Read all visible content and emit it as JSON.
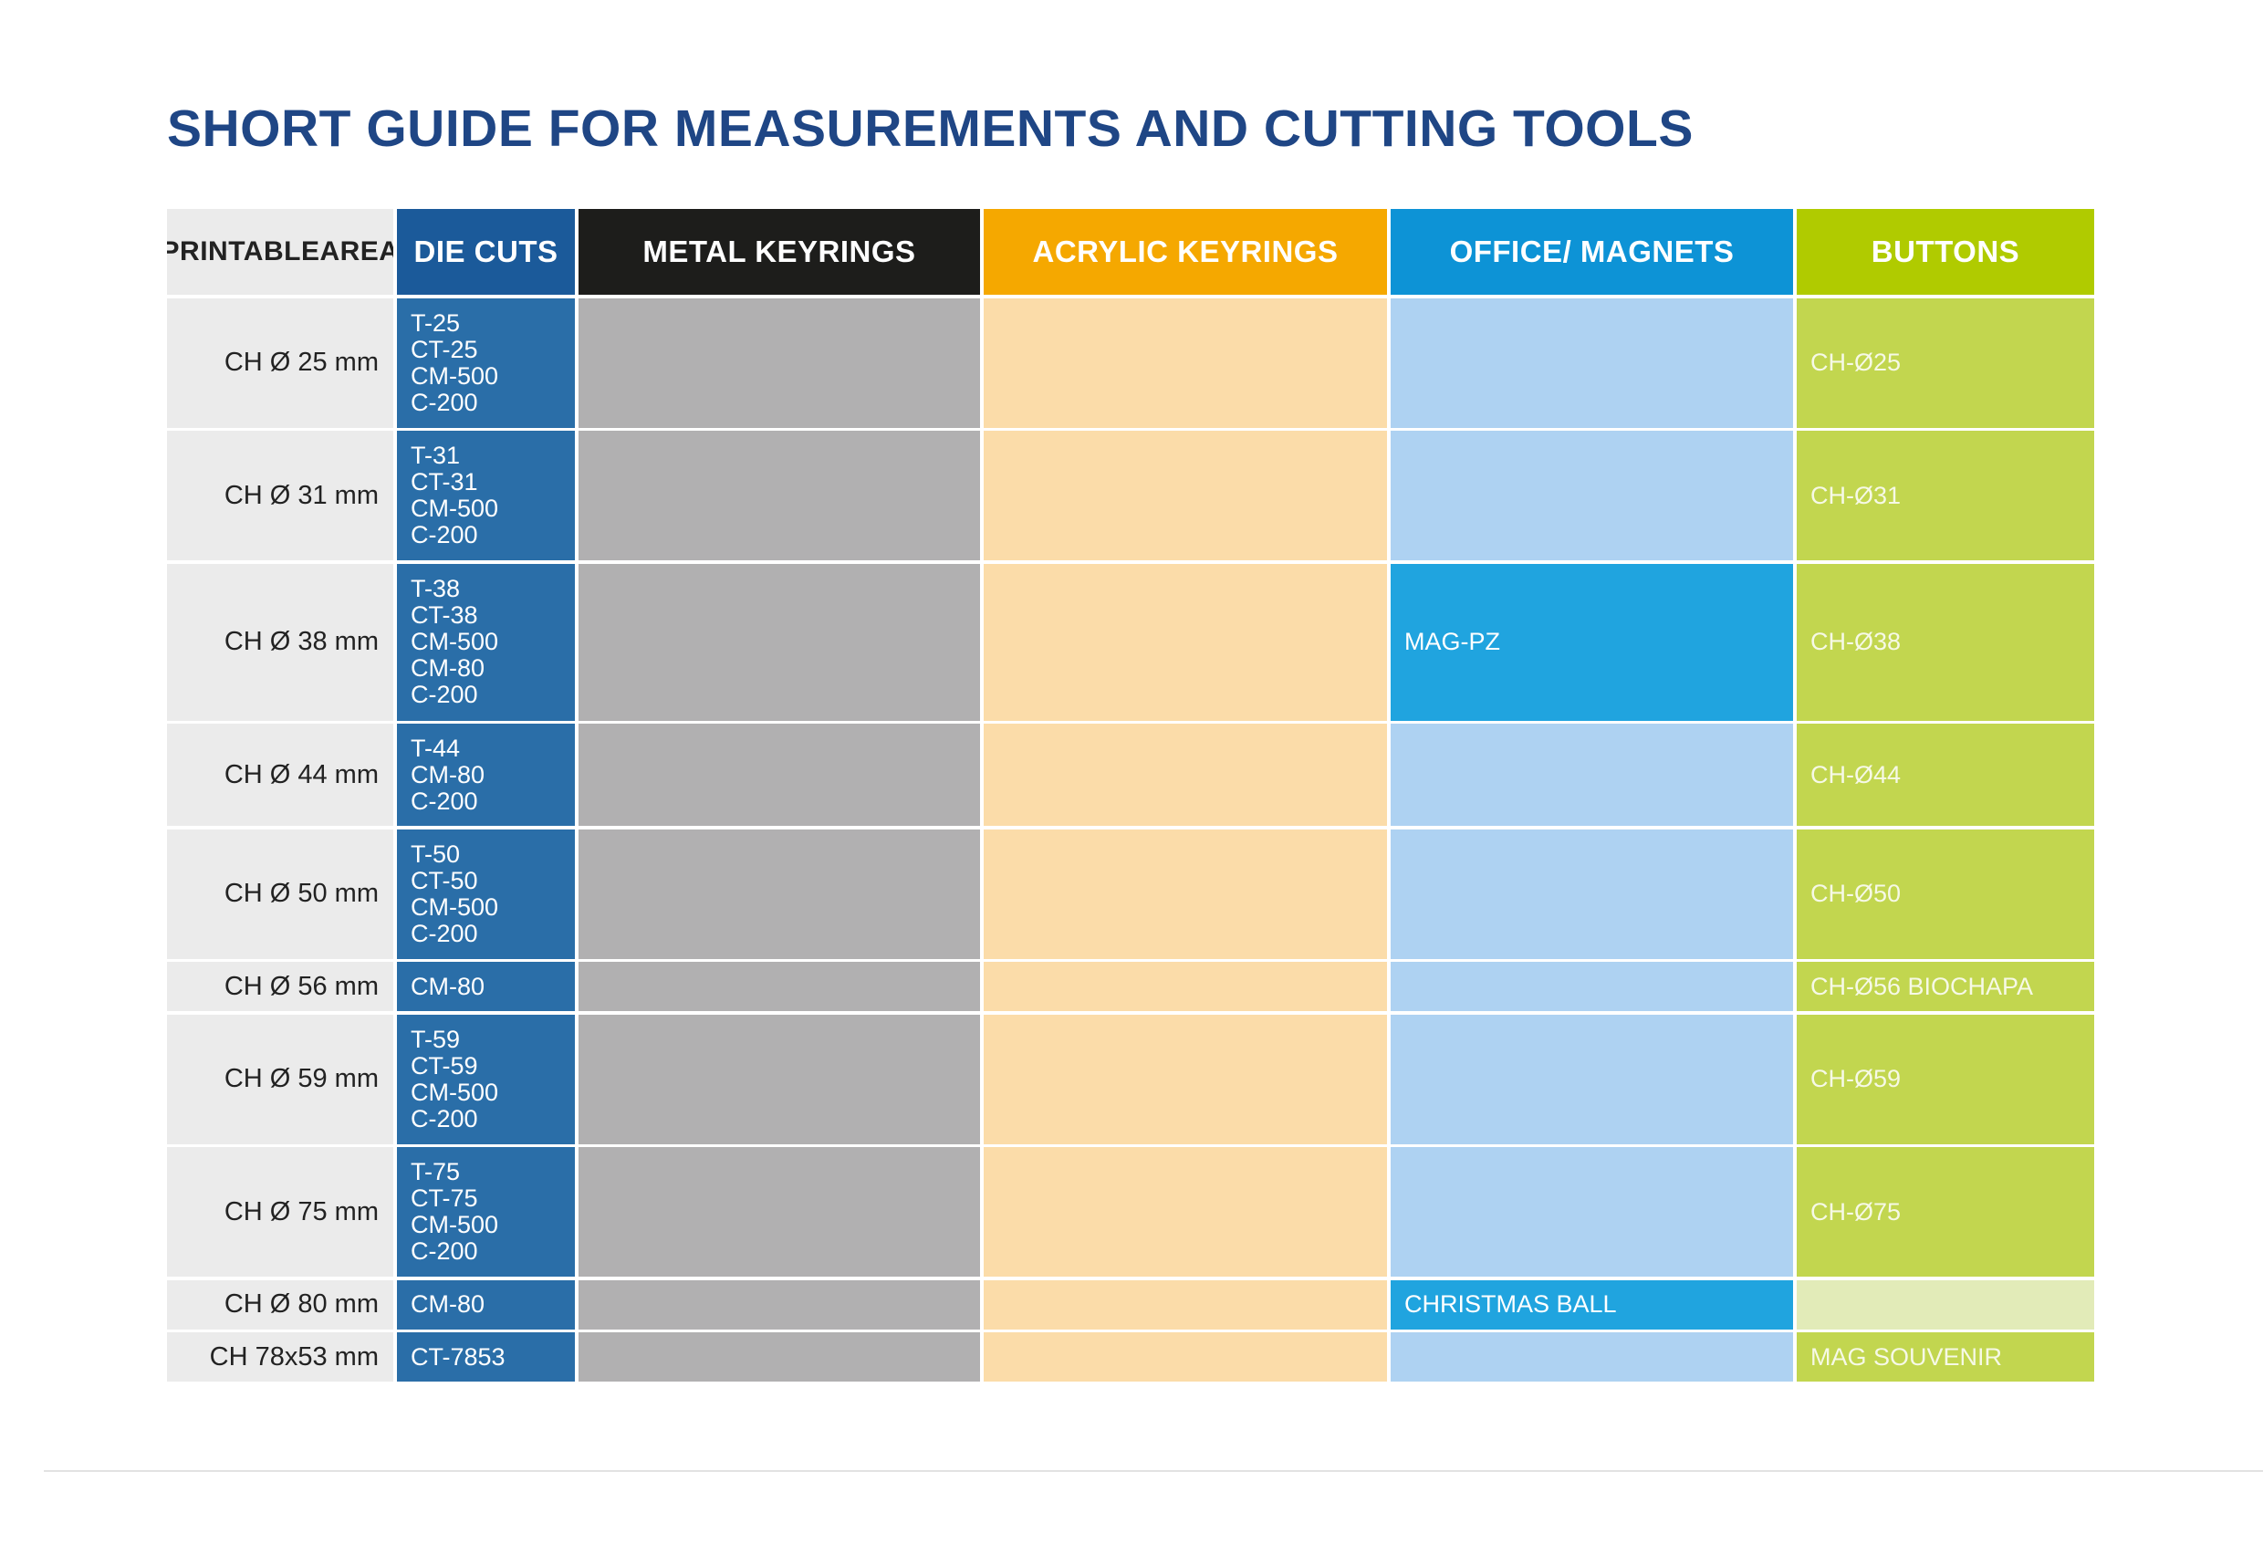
{
  "title": "SHORT GUIDE FOR MEASUREMENTS AND CUTTING TOOLS",
  "headers": {
    "printable_area": [
      "PRINTABLE",
      "AREA"
    ],
    "die_cuts": "DIE CUTS",
    "metal_keyrings": "METAL KEYRINGS",
    "acrylic_keyrings": "ACRYLIC KEYRINGS",
    "office_magnets": "OFFICE/ MAGNETS",
    "buttons": "BUTTONS"
  },
  "colors": {
    "title": "#1f4685",
    "die_cuts": "#1b5a9a",
    "metal_keyrings": "#1d1d1b",
    "acrylic_keyrings": "#f5a800",
    "office_magnets": "#0d93d6",
    "buttons": "#b0cb00"
  },
  "rows": [
    {
      "printable_area": "CH Ø 25 mm",
      "die_cuts": [
        "T-25",
        "CT-25",
        "CM-500",
        "C-200"
      ],
      "metal_keyrings": "",
      "acrylic_keyrings": "",
      "office_magnets": "",
      "buttons": "CH-Ø25"
    },
    {
      "printable_area": "CH Ø 31 mm",
      "die_cuts": [
        "T-31",
        "CT-31",
        "CM-500",
        "C-200"
      ],
      "metal_keyrings": "",
      "acrylic_keyrings": "",
      "office_magnets": "",
      "buttons": "CH-Ø31"
    },
    {
      "printable_area": "CH Ø 38 mm",
      "die_cuts": [
        "T-38",
        "CT-38",
        "CM-500",
        "CM-80",
        "C-200"
      ],
      "metal_keyrings": "",
      "acrylic_keyrings": "",
      "office_magnets": "MAG-PZ",
      "buttons": "CH-Ø38"
    },
    {
      "printable_area": "CH Ø 44 mm",
      "die_cuts": [
        "T-44",
        "CM-80",
        "C-200"
      ],
      "metal_keyrings": "",
      "acrylic_keyrings": "",
      "office_magnets": "",
      "buttons": "CH-Ø44"
    },
    {
      "printable_area": "CH Ø 50 mm",
      "die_cuts": [
        "T-50",
        "CT-50",
        "CM-500",
        "C-200"
      ],
      "metal_keyrings": "",
      "acrylic_keyrings": "",
      "office_magnets": "",
      "buttons": "CH-Ø50"
    },
    {
      "printable_area": "CH Ø 56 mm",
      "die_cuts": [
        "CM-80"
      ],
      "metal_keyrings": "",
      "acrylic_keyrings": "",
      "office_magnets": "",
      "buttons": "CH-Ø56 BIOCHAPA"
    },
    {
      "printable_area": "CH Ø 59 mm",
      "die_cuts": [
        "T-59",
        "CT-59",
        "CM-500",
        "C-200"
      ],
      "metal_keyrings": "",
      "acrylic_keyrings": "",
      "office_magnets": "",
      "buttons": "CH-Ø59"
    },
    {
      "printable_area": "CH Ø 75 mm",
      "die_cuts": [
        "T-75",
        "CT-75",
        "CM-500",
        "C-200"
      ],
      "metal_keyrings": "",
      "acrylic_keyrings": "",
      "office_magnets": "",
      "buttons": "CH-Ø75"
    },
    {
      "printable_area": "CH Ø 80 mm",
      "die_cuts": [
        "CM-80"
      ],
      "metal_keyrings": "",
      "acrylic_keyrings": "",
      "office_magnets": "CHRISTMAS BALL",
      "buttons": ""
    },
    {
      "printable_area": "CH 78x53 mm",
      "die_cuts": [
        "CT-7853"
      ],
      "metal_keyrings": "",
      "acrylic_keyrings": "",
      "office_magnets": "",
      "buttons": "MAG SOUVENIR"
    }
  ]
}
